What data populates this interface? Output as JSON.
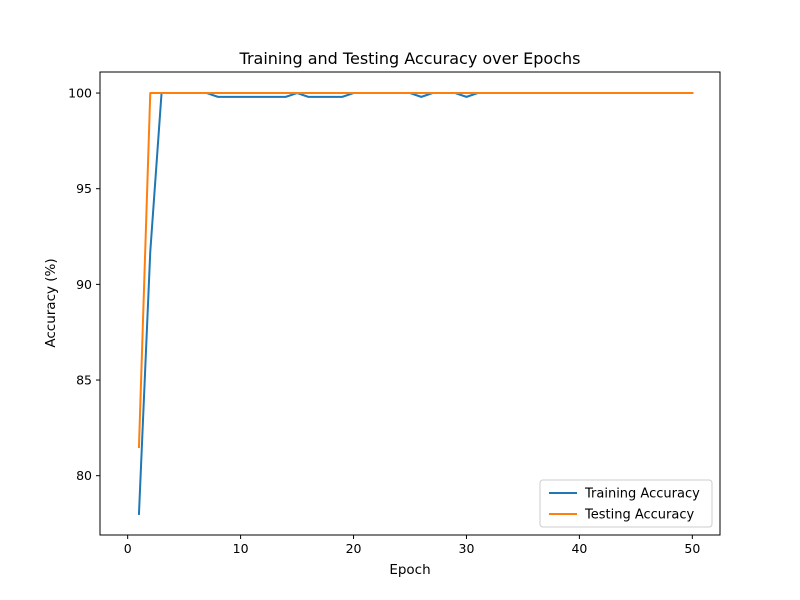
{
  "chart_data": {
    "type": "line",
    "title": "Training and Testing Accuracy over Epochs",
    "xlabel": "Epoch",
    "ylabel": "Accuracy (%)",
    "xlim": [
      -2.45,
      52.45
    ],
    "ylim": [
      76.9,
      101.1
    ],
    "xticks": [
      0,
      10,
      20,
      30,
      40,
      50
    ],
    "yticks": [
      80,
      85,
      90,
      95,
      100
    ],
    "grid": false,
    "legend_position": "lower-right",
    "series": [
      {
        "name": "Training Accuracy",
        "color": "#1f77b4",
        "x": [
          1,
          2,
          3,
          4,
          5,
          6,
          7,
          8,
          9,
          10,
          11,
          12,
          13,
          14,
          15,
          16,
          17,
          18,
          19,
          20,
          21,
          22,
          23,
          24,
          25,
          26,
          27,
          28,
          29,
          30,
          31,
          32,
          33,
          34,
          35,
          36,
          37,
          38,
          39,
          40,
          41,
          42,
          43,
          44,
          45,
          46,
          47,
          48,
          49,
          50
        ],
        "y": [
          78.0,
          91.7,
          100,
          100,
          100,
          100,
          100,
          99.8,
          99.8,
          99.8,
          99.8,
          99.8,
          99.8,
          99.8,
          100,
          99.8,
          99.8,
          99.8,
          99.8,
          100,
          100,
          100,
          100,
          100,
          100,
          99.8,
          100,
          100,
          100,
          99.8,
          100,
          100,
          100,
          100,
          100,
          100,
          100,
          100,
          100,
          100,
          100,
          100,
          100,
          100,
          100,
          100,
          100,
          100,
          100,
          100
        ]
      },
      {
        "name": "Testing Accuracy",
        "color": "#ff7f0e",
        "x": [
          1,
          2,
          3,
          4,
          5,
          6,
          7,
          8,
          9,
          10,
          11,
          12,
          13,
          14,
          15,
          16,
          17,
          18,
          19,
          20,
          21,
          22,
          23,
          24,
          25,
          26,
          27,
          28,
          29,
          30,
          31,
          32,
          33,
          34,
          35,
          36,
          37,
          38,
          39,
          40,
          41,
          42,
          43,
          44,
          45,
          46,
          47,
          48,
          49,
          50
        ],
        "y": [
          81.5,
          100,
          100,
          100,
          100,
          100,
          100,
          100,
          100,
          100,
          100,
          100,
          100,
          100,
          100,
          100,
          100,
          100,
          100,
          100,
          100,
          100,
          100,
          100,
          100,
          100,
          100,
          100,
          100,
          100,
          100,
          100,
          100,
          100,
          100,
          100,
          100,
          100,
          100,
          100,
          100,
          100,
          100,
          100,
          100,
          100,
          100,
          100,
          100,
          100
        ]
      }
    ]
  }
}
